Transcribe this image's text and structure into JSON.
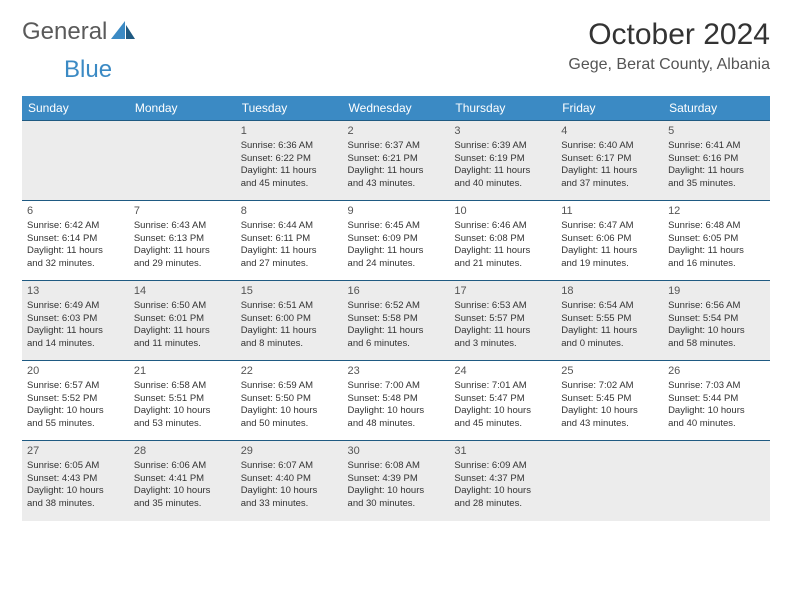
{
  "brand": {
    "part1": "General",
    "part2": "Blue"
  },
  "colors": {
    "header_bg": "#3b8ac4",
    "header_text": "#ffffff",
    "row_border": "#1f5a82",
    "alt_row_bg": "#ececec",
    "body_text": "#333333",
    "muted_text": "#555555",
    "page_bg": "#ffffff"
  },
  "month_title": "October 2024",
  "location": "Gege, Berat County, Albania",
  "weekday_headers": [
    "Sunday",
    "Monday",
    "Tuesday",
    "Wednesday",
    "Thursday",
    "Friday",
    "Saturday"
  ],
  "weeks": [
    [
      null,
      null,
      {
        "day": "1",
        "sunrise": "Sunrise: 6:36 AM",
        "sunset": "Sunset: 6:22 PM",
        "daylight1": "Daylight: 11 hours",
        "daylight2": "and 45 minutes."
      },
      {
        "day": "2",
        "sunrise": "Sunrise: 6:37 AM",
        "sunset": "Sunset: 6:21 PM",
        "daylight1": "Daylight: 11 hours",
        "daylight2": "and 43 minutes."
      },
      {
        "day": "3",
        "sunrise": "Sunrise: 6:39 AM",
        "sunset": "Sunset: 6:19 PM",
        "daylight1": "Daylight: 11 hours",
        "daylight2": "and 40 minutes."
      },
      {
        "day": "4",
        "sunrise": "Sunrise: 6:40 AM",
        "sunset": "Sunset: 6:17 PM",
        "daylight1": "Daylight: 11 hours",
        "daylight2": "and 37 minutes."
      },
      {
        "day": "5",
        "sunrise": "Sunrise: 6:41 AM",
        "sunset": "Sunset: 6:16 PM",
        "daylight1": "Daylight: 11 hours",
        "daylight2": "and 35 minutes."
      }
    ],
    [
      {
        "day": "6",
        "sunrise": "Sunrise: 6:42 AM",
        "sunset": "Sunset: 6:14 PM",
        "daylight1": "Daylight: 11 hours",
        "daylight2": "and 32 minutes."
      },
      {
        "day": "7",
        "sunrise": "Sunrise: 6:43 AM",
        "sunset": "Sunset: 6:13 PM",
        "daylight1": "Daylight: 11 hours",
        "daylight2": "and 29 minutes."
      },
      {
        "day": "8",
        "sunrise": "Sunrise: 6:44 AM",
        "sunset": "Sunset: 6:11 PM",
        "daylight1": "Daylight: 11 hours",
        "daylight2": "and 27 minutes."
      },
      {
        "day": "9",
        "sunrise": "Sunrise: 6:45 AM",
        "sunset": "Sunset: 6:09 PM",
        "daylight1": "Daylight: 11 hours",
        "daylight2": "and 24 minutes."
      },
      {
        "day": "10",
        "sunrise": "Sunrise: 6:46 AM",
        "sunset": "Sunset: 6:08 PM",
        "daylight1": "Daylight: 11 hours",
        "daylight2": "and 21 minutes."
      },
      {
        "day": "11",
        "sunrise": "Sunrise: 6:47 AM",
        "sunset": "Sunset: 6:06 PM",
        "daylight1": "Daylight: 11 hours",
        "daylight2": "and 19 minutes."
      },
      {
        "day": "12",
        "sunrise": "Sunrise: 6:48 AM",
        "sunset": "Sunset: 6:05 PM",
        "daylight1": "Daylight: 11 hours",
        "daylight2": "and 16 minutes."
      }
    ],
    [
      {
        "day": "13",
        "sunrise": "Sunrise: 6:49 AM",
        "sunset": "Sunset: 6:03 PM",
        "daylight1": "Daylight: 11 hours",
        "daylight2": "and 14 minutes."
      },
      {
        "day": "14",
        "sunrise": "Sunrise: 6:50 AM",
        "sunset": "Sunset: 6:01 PM",
        "daylight1": "Daylight: 11 hours",
        "daylight2": "and 11 minutes."
      },
      {
        "day": "15",
        "sunrise": "Sunrise: 6:51 AM",
        "sunset": "Sunset: 6:00 PM",
        "daylight1": "Daylight: 11 hours",
        "daylight2": "and 8 minutes."
      },
      {
        "day": "16",
        "sunrise": "Sunrise: 6:52 AM",
        "sunset": "Sunset: 5:58 PM",
        "daylight1": "Daylight: 11 hours",
        "daylight2": "and 6 minutes."
      },
      {
        "day": "17",
        "sunrise": "Sunrise: 6:53 AM",
        "sunset": "Sunset: 5:57 PM",
        "daylight1": "Daylight: 11 hours",
        "daylight2": "and 3 minutes."
      },
      {
        "day": "18",
        "sunrise": "Sunrise: 6:54 AM",
        "sunset": "Sunset: 5:55 PM",
        "daylight1": "Daylight: 11 hours",
        "daylight2": "and 0 minutes."
      },
      {
        "day": "19",
        "sunrise": "Sunrise: 6:56 AM",
        "sunset": "Sunset: 5:54 PM",
        "daylight1": "Daylight: 10 hours",
        "daylight2": "and 58 minutes."
      }
    ],
    [
      {
        "day": "20",
        "sunrise": "Sunrise: 6:57 AM",
        "sunset": "Sunset: 5:52 PM",
        "daylight1": "Daylight: 10 hours",
        "daylight2": "and 55 minutes."
      },
      {
        "day": "21",
        "sunrise": "Sunrise: 6:58 AM",
        "sunset": "Sunset: 5:51 PM",
        "daylight1": "Daylight: 10 hours",
        "daylight2": "and 53 minutes."
      },
      {
        "day": "22",
        "sunrise": "Sunrise: 6:59 AM",
        "sunset": "Sunset: 5:50 PM",
        "daylight1": "Daylight: 10 hours",
        "daylight2": "and 50 minutes."
      },
      {
        "day": "23",
        "sunrise": "Sunrise: 7:00 AM",
        "sunset": "Sunset: 5:48 PM",
        "daylight1": "Daylight: 10 hours",
        "daylight2": "and 48 minutes."
      },
      {
        "day": "24",
        "sunrise": "Sunrise: 7:01 AM",
        "sunset": "Sunset: 5:47 PM",
        "daylight1": "Daylight: 10 hours",
        "daylight2": "and 45 minutes."
      },
      {
        "day": "25",
        "sunrise": "Sunrise: 7:02 AM",
        "sunset": "Sunset: 5:45 PM",
        "daylight1": "Daylight: 10 hours",
        "daylight2": "and 43 minutes."
      },
      {
        "day": "26",
        "sunrise": "Sunrise: 7:03 AM",
        "sunset": "Sunset: 5:44 PM",
        "daylight1": "Daylight: 10 hours",
        "daylight2": "and 40 minutes."
      }
    ],
    [
      {
        "day": "27",
        "sunrise": "Sunrise: 6:05 AM",
        "sunset": "Sunset: 4:43 PM",
        "daylight1": "Daylight: 10 hours",
        "daylight2": "and 38 minutes."
      },
      {
        "day": "28",
        "sunrise": "Sunrise: 6:06 AM",
        "sunset": "Sunset: 4:41 PM",
        "daylight1": "Daylight: 10 hours",
        "daylight2": "and 35 minutes."
      },
      {
        "day": "29",
        "sunrise": "Sunrise: 6:07 AM",
        "sunset": "Sunset: 4:40 PM",
        "daylight1": "Daylight: 10 hours",
        "daylight2": "and 33 minutes."
      },
      {
        "day": "30",
        "sunrise": "Sunrise: 6:08 AM",
        "sunset": "Sunset: 4:39 PM",
        "daylight1": "Daylight: 10 hours",
        "daylight2": "and 30 minutes."
      },
      {
        "day": "31",
        "sunrise": "Sunrise: 6:09 AM",
        "sunset": "Sunset: 4:37 PM",
        "daylight1": "Daylight: 10 hours",
        "daylight2": "and 28 minutes."
      },
      null,
      null
    ]
  ]
}
